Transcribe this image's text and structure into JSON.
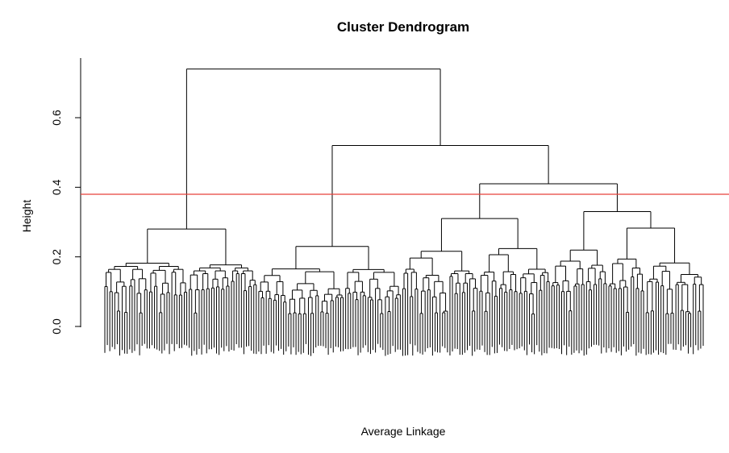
{
  "chart_data": {
    "type": "dendrogram",
    "title": "Cluster Dendrogram",
    "xlabel": "Average Linkage",
    "ylabel": "Height",
    "ylim": [
      0,
      0.74
    ],
    "yticks": [
      0.0,
      0.2,
      0.4,
      0.6
    ],
    "ytick_labels": [
      "0.0",
      "0.2",
      "0.4",
      "0.6"
    ],
    "cut_height": 0.38,
    "cut_line_color": "#e8413a",
    "root": {
      "h": 0.74,
      "children": [
        {
          "h": 0.28,
          "id": "A",
          "leaves": 62,
          "subs": [
            0.22,
            0.2,
            0.2,
            0.16,
            0.12
          ]
        },
        {
          "h": 0.52,
          "children": [
            {
              "h": 0.23,
              "id": "B",
              "leaves": 58,
              "subs": [
                0.2,
                0.18,
                0.14,
                0.11,
                0.09
              ]
            },
            {
              "h": 0.41,
              "children": [
                {
                  "h": 0.31,
                  "id": "C",
                  "leaves": 60,
                  "subs": [
                    0.28,
                    0.21,
                    0.18,
                    0.16,
                    0.11
                  ]
                },
                {
                  "h": 0.33,
                  "id": "D",
                  "leaves": 62,
                  "subs": [
                    0.29,
                    0.22,
                    0.19,
                    0.16,
                    0.13
                  ]
                }
              ]
            }
          ]
        }
      ]
    }
  }
}
